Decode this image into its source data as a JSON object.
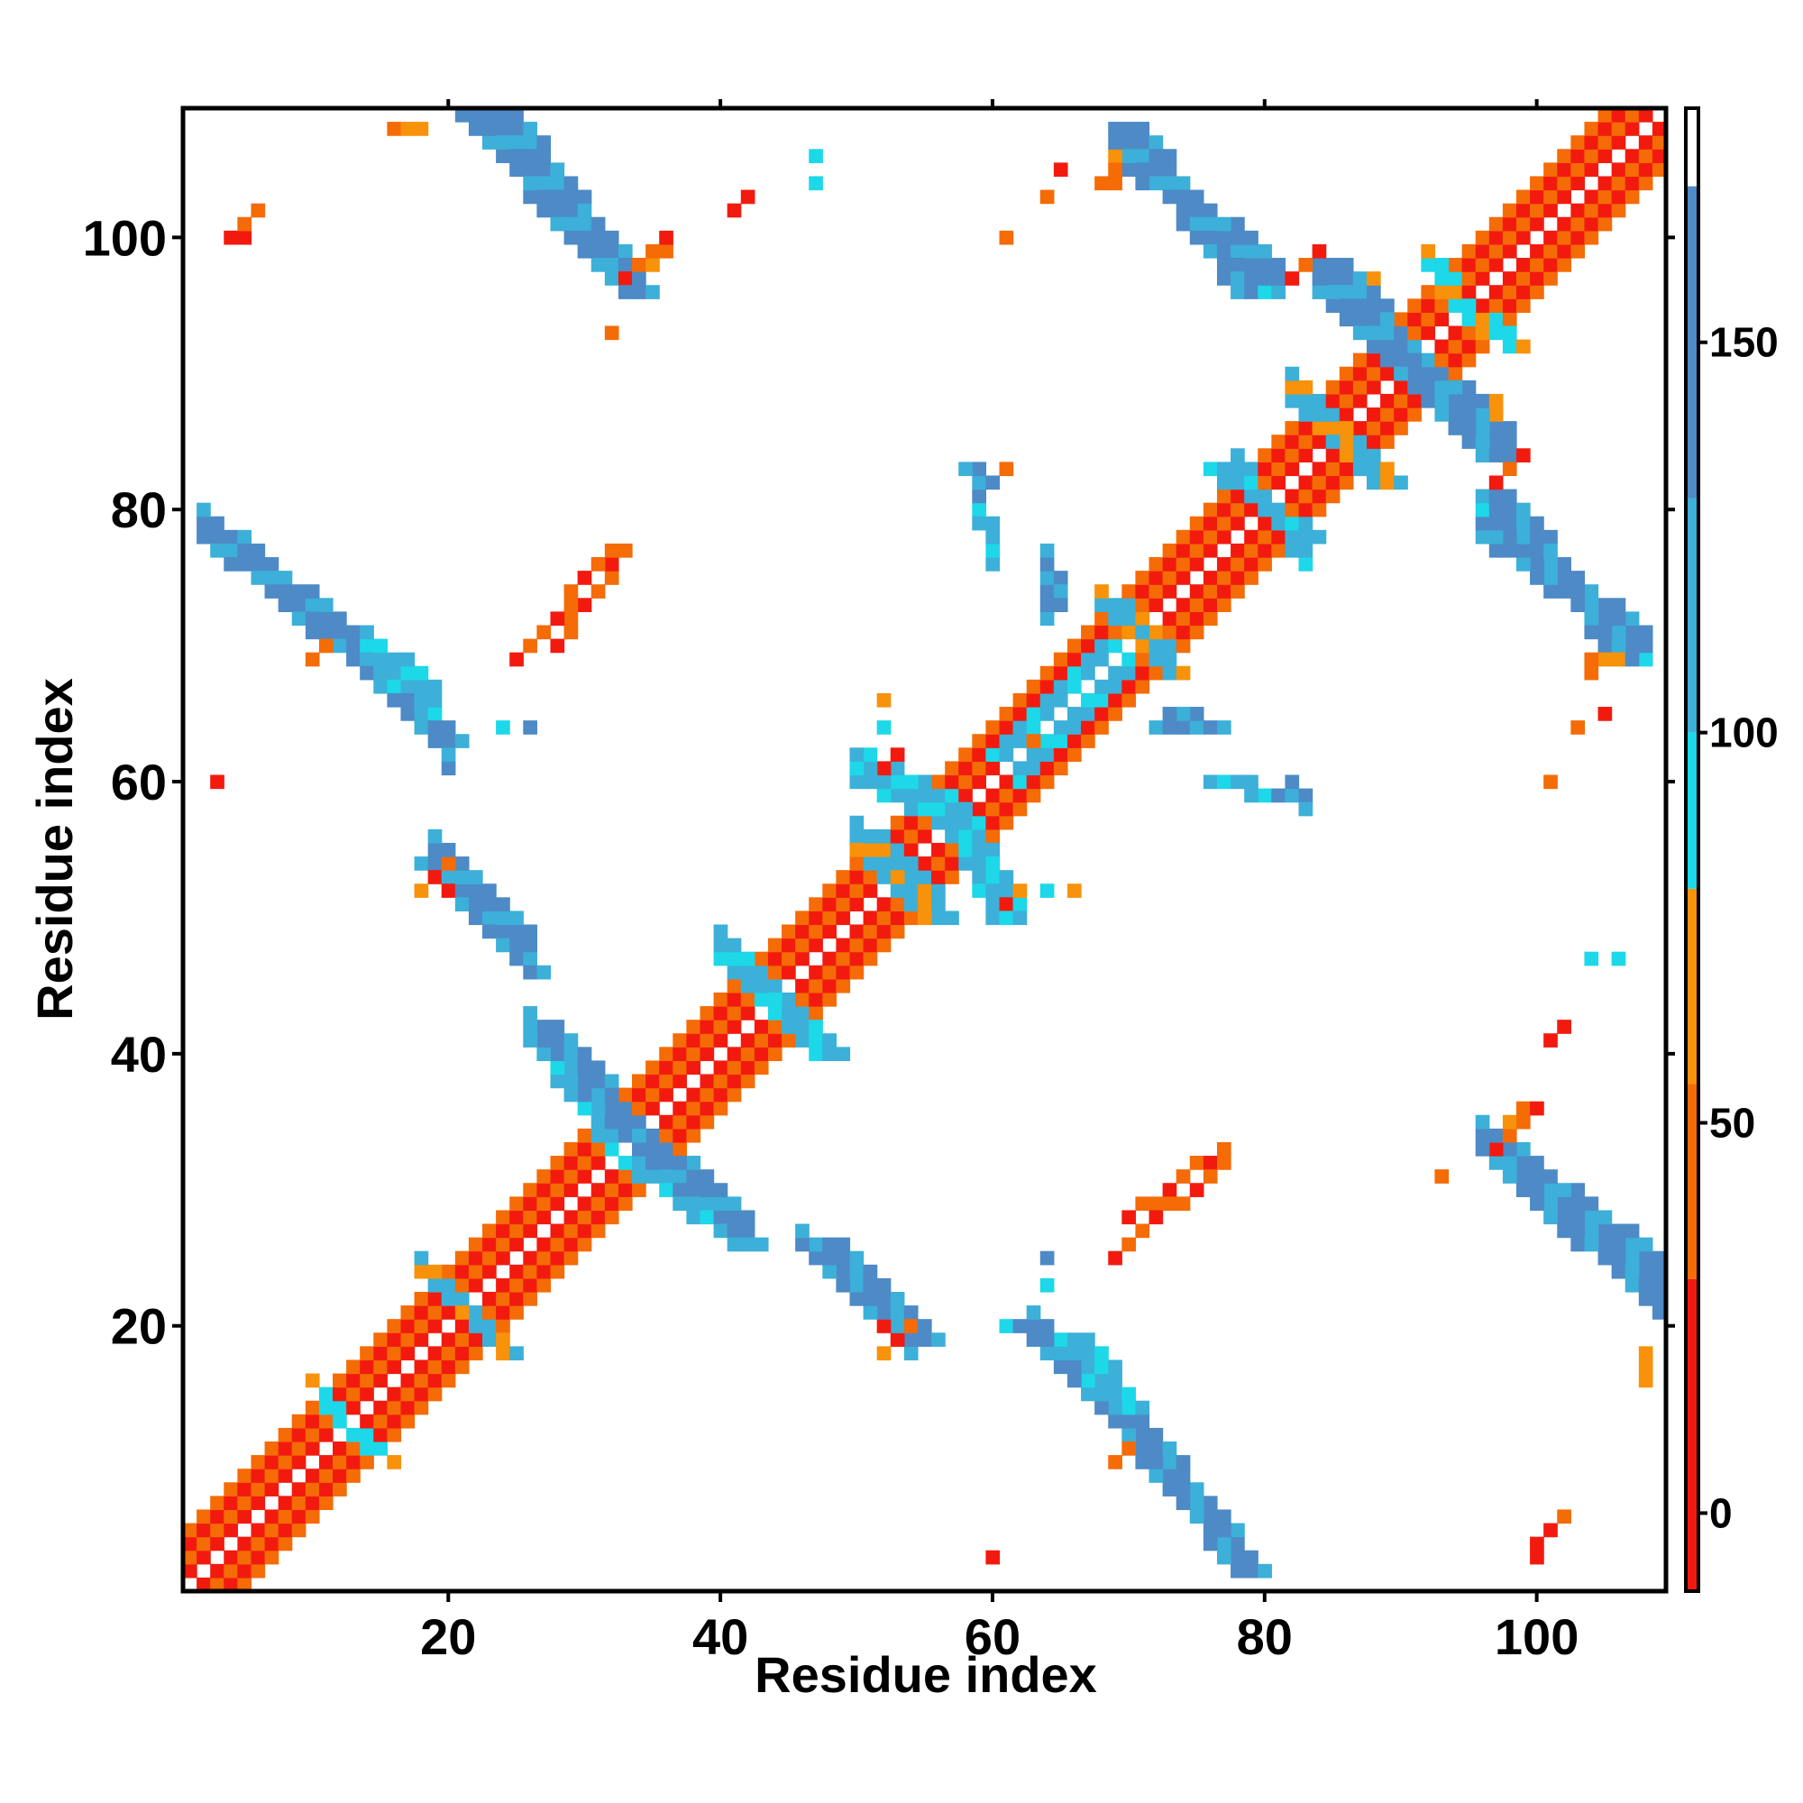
{
  "chart_data": {
    "type": "heatmap",
    "title": "",
    "xlabel": "Residue index",
    "ylabel": "Residue index",
    "xlim": [
      1,
      109
    ],
    "ylim": [
      1,
      109
    ],
    "x_ticks": [
      20,
      40,
      60,
      80,
      100
    ],
    "y_ticks": [
      20,
      40,
      60,
      80,
      100
    ],
    "x_tick_labels": [
      "20",
      "40",
      "60",
      "80",
      "100"
    ],
    "y_tick_labels": [
      "20",
      "40",
      "60",
      "80",
      "100"
    ],
    "colorbar": {
      "range": [
        -10,
        180
      ],
      "ticks": [
        0,
        50,
        100,
        150
      ],
      "tick_labels": [
        "0",
        "50",
        "100",
        "150"
      ],
      "bands": [
        {
          "from": -10,
          "to": 30,
          "color": "#f21a0f"
        },
        {
          "from": 30,
          "to": 55,
          "color": "#f56b06"
        },
        {
          "from": 55,
          "to": 80,
          "color": "#f7920a"
        },
        {
          "from": 80,
          "to": 100,
          "color": "#1dd8e8"
        },
        {
          "from": 100,
          "to": 130,
          "color": "#3cb0d8"
        },
        {
          "from": 130,
          "to": 170,
          "color": "#4d8ac6"
        },
        {
          "from": 170,
          "to": 180,
          "color": "#ffffff"
        }
      ]
    },
    "grid": false,
    "legend": "colorbar-right",
    "diagonal_band": {
      "from": 1,
      "to": 109,
      "offsets": [
        1,
        2,
        3,
        4
      ],
      "values": [
        10,
        40,
        10,
        50
      ]
    },
    "contact_segments": [
      {
        "x0": 3,
        "y0": 78,
        "x1": 19,
        "y1": 63,
        "value": 135,
        "width": 3
      },
      {
        "x0": 18,
        "y0": 54,
        "x1": 26,
        "y1": 46,
        "value": 140,
        "width": 2
      },
      {
        "x0": 23,
        "y0": 109,
        "x1": 33,
        "y1": 96,
        "value": 140,
        "width": 3
      },
      {
        "x0": 33,
        "y0": 32,
        "x1": 41,
        "y1": 26,
        "value": 120,
        "width": 3
      },
      {
        "x0": 26,
        "y0": 42,
        "x1": 33,
        "y1": 34,
        "value": 130,
        "width": 3
      },
      {
        "x0": 47,
        "y0": 26,
        "x1": 54,
        "y1": 19,
        "value": 130,
        "width": 3
      },
      {
        "x0": 65,
        "y0": 19,
        "x1": 69,
        "y1": 14,
        "value": 120,
        "width": 3
      },
      {
        "x0": 70,
        "y0": 12,
        "x1": 78,
        "y1": 2,
        "value": 145,
        "width": 3
      },
      {
        "x0": 69,
        "y0": 108,
        "x1": 78,
        "y1": 96,
        "value": 140,
        "width": 3
      },
      {
        "x0": 84,
        "y0": 98,
        "x1": 90,
        "y1": 91,
        "value": 135,
        "width": 3
      },
      {
        "x0": 90,
        "y0": 90,
        "x1": 96,
        "y1": 84,
        "value": 130,
        "width": 3
      },
      {
        "x0": 96,
        "y0": 81,
        "x1": 106,
        "y1": 69,
        "value": 145,
        "width": 3
      },
      {
        "x0": 98,
        "y0": 31,
        "x1": 109,
        "y1": 21,
        "value": 140,
        "width": 3
      },
      {
        "x0": 56,
        "y0": 58,
        "x1": 60,
        "y1": 50,
        "value": 110,
        "width": 3
      },
      {
        "x0": 60,
        "y0": 62,
        "x1": 68,
        "y1": 70,
        "value": 110,
        "width": 2
      },
      {
        "x0": 50,
        "y0": 56,
        "x1": 55,
        "y1": 50,
        "value": 100,
        "width": 3
      },
      {
        "x0": 41,
        "y0": 46,
        "x1": 47,
        "y1": 40,
        "value": 105,
        "width": 3
      },
      {
        "x0": 18,
        "y0": 24,
        "x1": 24,
        "y1": 18,
        "value": 100,
        "width": 2
      },
      {
        "x0": 10,
        "y0": 16,
        "x1": 14,
        "y1": 11,
        "value": 95,
        "width": 1
      },
      {
        "x0": 83,
        "y0": 87,
        "x1": 88,
        "y1": 82,
        "value": 100,
        "width": 3
      },
      {
        "x0": 76,
        "y0": 83,
        "x1": 83,
        "y1": 78,
        "value": 105,
        "width": 2
      },
      {
        "x0": 69,
        "y0": 73,
        "x1": 73,
        "y1": 68,
        "value": 100,
        "width": 2
      },
      {
        "x0": 93,
        "y0": 96,
        "x1": 98,
        "y1": 92,
        "value": 95,
        "width": 2
      },
      {
        "x0": 72,
        "y0": 64,
        "x1": 76,
        "y1": 64,
        "value": 140,
        "width": 1
      },
      {
        "x0": 76,
        "y0": 60,
        "x1": 83,
        "y1": 59,
        "value": 130,
        "width": 1
      },
      {
        "x0": 58,
        "y0": 83,
        "x1": 60,
        "y1": 82,
        "value": 140,
        "width": 1
      },
      {
        "x0": 59,
        "y0": 80,
        "x1": 60,
        "y1": 76,
        "value": 105,
        "width": 1
      },
      {
        "x0": 64,
        "y0": 77,
        "x1": 65,
        "y1": 73,
        "value": 130,
        "width": 1
      },
      {
        "x0": 28,
        "y0": 70,
        "x1": 33,
        "y1": 77,
        "value": 50,
        "width": 1
      },
      {
        "x0": 69,
        "y0": 25,
        "x1": 77,
        "y1": 32,
        "value": 45,
        "width": 1
      },
      {
        "x0": 97,
        "y0": 33,
        "x1": 99,
        "y1": 36,
        "value": 55,
        "width": 1
      },
      {
        "x0": 33,
        "y0": 97,
        "x1": 36,
        "y1": 100,
        "value": 50,
        "width": 1
      },
      {
        "x0": 104,
        "y0": 68,
        "x1": 106,
        "y1": 69,
        "value": 60,
        "width": 1
      },
      {
        "x0": 16,
        "y0": 108,
        "x1": 18,
        "y1": 108,
        "value": 65,
        "width": 1
      }
    ],
    "contact_cells": [
      {
        "x": 4,
        "y": 100,
        "value": 10
      },
      {
        "x": 5,
        "y": 100,
        "value": 10
      },
      {
        "x": 5,
        "y": 101,
        "value": 40
      },
      {
        "x": 6,
        "y": 102,
        "value": 50
      },
      {
        "x": 3,
        "y": 60,
        "value": 10
      },
      {
        "x": 32,
        "y": 93,
        "value": 50
      },
      {
        "x": 41,
        "y": 102,
        "value": 10
      },
      {
        "x": 42,
        "y": 103,
        "value": 10
      },
      {
        "x": 47,
        "y": 106,
        "value": 95
      },
      {
        "x": 47,
        "y": 104,
        "value": 95
      },
      {
        "x": 61,
        "y": 100,
        "value": 50
      },
      {
        "x": 65,
        "y": 105,
        "value": 10
      },
      {
        "x": 64,
        "y": 103,
        "value": 50
      },
      {
        "x": 60,
        "y": 3,
        "value": 10
      },
      {
        "x": 93,
        "y": 31,
        "value": 50
      },
      {
        "x": 101,
        "y": 41,
        "value": 10
      },
      {
        "x": 102,
        "y": 42,
        "value": 10
      },
      {
        "x": 104,
        "y": 47,
        "value": 95
      },
      {
        "x": 106,
        "y": 47,
        "value": 95
      },
      {
        "x": 101,
        "y": 60,
        "value": 50
      },
      {
        "x": 103,
        "y": 64,
        "value": 50
      },
      {
        "x": 105,
        "y": 65,
        "value": 10
      },
      {
        "x": 100,
        "y": 3,
        "value": 10
      },
      {
        "x": 100,
        "y": 4,
        "value": 10
      },
      {
        "x": 101,
        "y": 5,
        "value": 10
      },
      {
        "x": 102,
        "y": 6,
        "value": 50
      },
      {
        "x": 108,
        "y": 16,
        "value": 65
      },
      {
        "x": 108,
        "y": 17,
        "value": 65
      },
      {
        "x": 20,
        "y": 61,
        "value": 130
      },
      {
        "x": 20,
        "y": 62,
        "value": 110
      },
      {
        "x": 24,
        "y": 64,
        "value": 95
      },
      {
        "x": 26,
        "y": 64,
        "value": 140
      },
      {
        "x": 61,
        "y": 20,
        "value": 95
      },
      {
        "x": 62,
        "y": 20,
        "value": 140
      },
      {
        "x": 64,
        "y": 25,
        "value": 140
      },
      {
        "x": 64,
        "y": 23,
        "value": 95
      },
      {
        "x": 52,
        "y": 18,
        "value": 55
      },
      {
        "x": 53,
        "y": 19,
        "value": 10
      },
      {
        "x": 54,
        "y": 20,
        "value": 50
      },
      {
        "x": 18,
        "y": 52,
        "value": 55
      },
      {
        "x": 19,
        "y": 53,
        "value": 10
      },
      {
        "x": 20,
        "y": 54,
        "value": 50
      },
      {
        "x": 20,
        "y": 52,
        "value": 10
      },
      {
        "x": 52,
        "y": 20,
        "value": 10
      },
      {
        "x": 11,
        "y": 70,
        "value": 50
      },
      {
        "x": 70,
        "y": 11,
        "value": 50
      },
      {
        "x": 69,
        "y": 10,
        "value": 45
      },
      {
        "x": 10,
        "y": 69,
        "value": 45
      },
      {
        "x": 83,
        "y": 98,
        "value": 50
      },
      {
        "x": 84,
        "y": 99,
        "value": 10
      },
      {
        "x": 88,
        "y": 97,
        "value": 65
      },
      {
        "x": 98,
        "y": 83,
        "value": 50
      },
      {
        "x": 99,
        "y": 84,
        "value": 10
      },
      {
        "x": 97,
        "y": 88,
        "value": 65
      },
      {
        "x": 69,
        "y": 104,
        "value": 50
      },
      {
        "x": 68,
        "y": 104,
        "value": 50
      },
      {
        "x": 69,
        "y": 105,
        "value": 45
      },
      {
        "x": 104,
        "y": 69,
        "value": 50
      },
      {
        "x": 108,
        "y": 69,
        "value": 95
      },
      {
        "x": 62,
        "y": 52,
        "value": 65
      },
      {
        "x": 64,
        "y": 52,
        "value": 95
      },
      {
        "x": 66,
        "y": 52,
        "value": 60
      },
      {
        "x": 61,
        "y": 51,
        "value": 10
      },
      {
        "x": 61,
        "y": 53,
        "value": 110
      },
      {
        "x": 63,
        "y": 63,
        "value": 50
      },
      {
        "x": 52,
        "y": 61,
        "value": 10
      },
      {
        "x": 53,
        "y": 62,
        "value": 10
      },
      {
        "x": 53,
        "y": 60,
        "value": 95
      },
      {
        "x": 52,
        "y": 64,
        "value": 95
      },
      {
        "x": 52,
        "y": 66,
        "value": 60
      },
      {
        "x": 61,
        "y": 83,
        "value": 50
      },
      {
        "x": 96,
        "y": 80,
        "value": 95
      },
      {
        "x": 97,
        "y": 87,
        "value": 55
      },
      {
        "x": 97,
        "y": 82,
        "value": 10
      },
      {
        "x": 82,
        "y": 97,
        "value": 10
      },
      {
        "x": 80,
        "y": 96,
        "value": 95
      }
    ]
  }
}
